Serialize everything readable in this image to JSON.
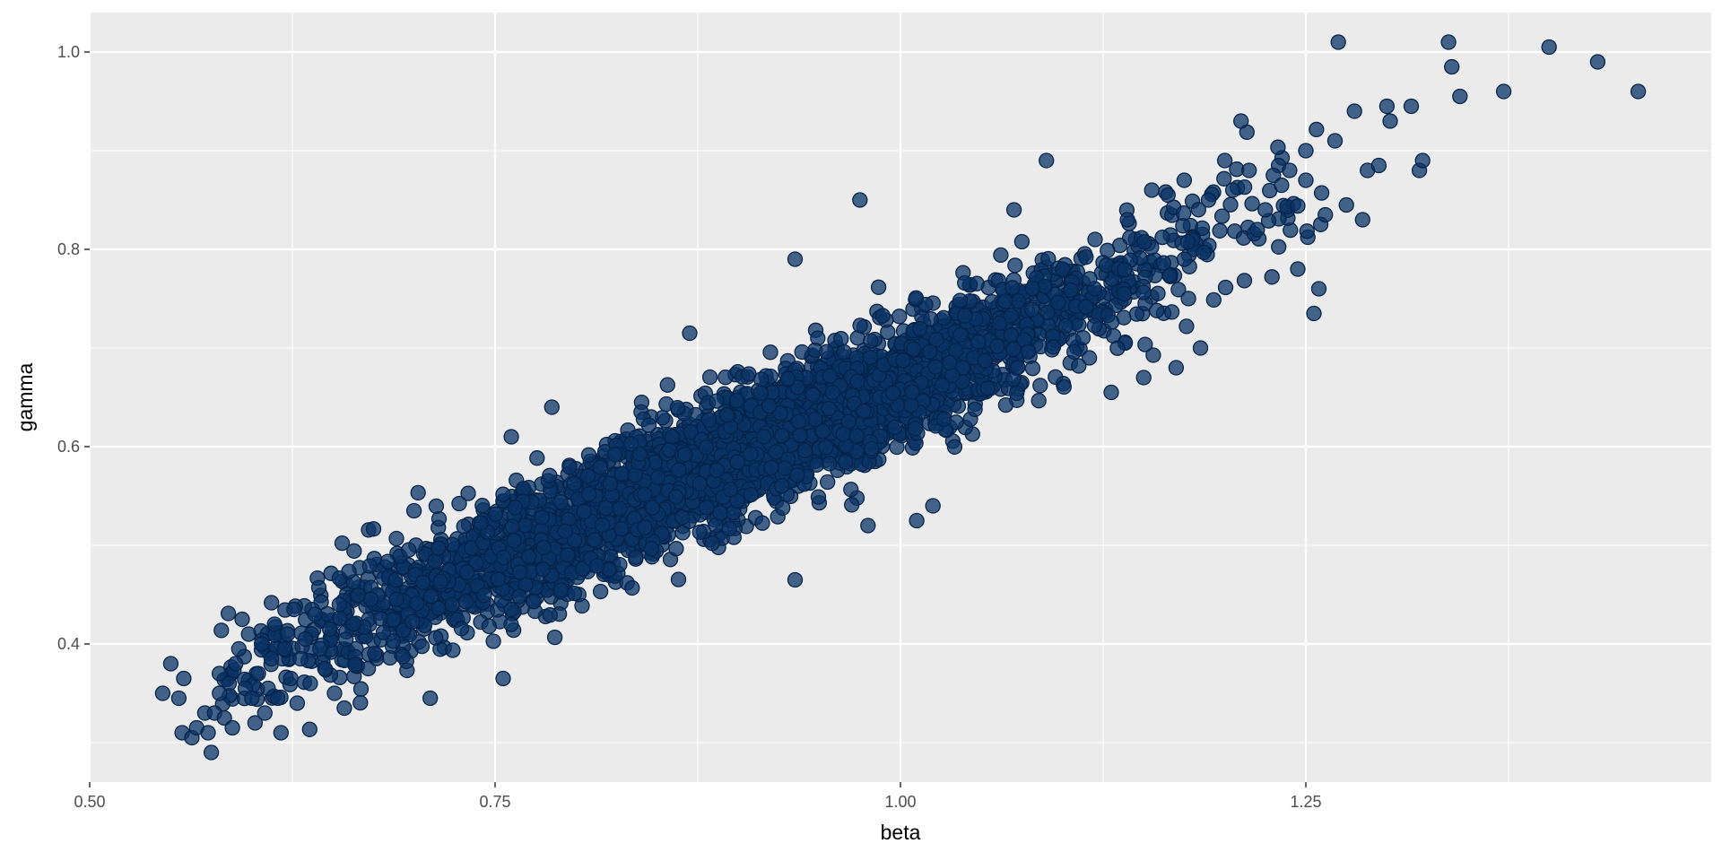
{
  "chart_data": {
    "type": "scatter",
    "title": "",
    "xlabel": "beta",
    "ylabel": "gamma",
    "xlim": [
      0.5,
      1.5
    ],
    "ylim": [
      0.26,
      1.04
    ],
    "x_ticks": [
      0.5,
      0.75,
      1.0,
      1.25
    ],
    "x_tick_labels": [
      "0.50",
      "0.75",
      "1.00",
      "1.25"
    ],
    "y_ticks": [
      0.4,
      0.6,
      0.8,
      1.0
    ],
    "y_tick_labels": [
      "0.4",
      "0.6",
      "0.8",
      "1.0"
    ],
    "grid": true,
    "legend": "none",
    "colors": {
      "panel": "#ebebeb",
      "grid": "#ffffff",
      "point_fill": "#0b3466",
      "point_stroke": "#03234a"
    },
    "series": [
      {
        "points": [
          [
            0.545,
            0.35
          ],
          [
            0.55,
            0.38
          ],
          [
            0.555,
            0.345
          ],
          [
            0.557,
            0.31
          ],
          [
            0.558,
            0.365
          ],
          [
            0.563,
            0.305
          ],
          [
            0.566,
            0.315
          ],
          [
            0.571,
            0.33
          ],
          [
            0.573,
            0.31
          ],
          [
            0.575,
            0.29
          ],
          [
            0.577,
            0.33
          ],
          [
            0.58,
            0.37
          ],
          [
            0.583,
            0.325
          ],
          [
            0.586,
            0.36
          ],
          [
            0.588,
            0.315
          ],
          [
            0.59,
            0.38
          ],
          [
            0.592,
            0.395
          ],
          [
            0.594,
            0.425
          ],
          [
            0.596,
            0.355
          ],
          [
            0.598,
            0.41
          ],
          [
            0.6,
            0.345
          ],
          [
            0.602,
            0.32
          ],
          [
            0.604,
            0.37
          ],
          [
            0.606,
            0.4
          ],
          [
            0.608,
            0.33
          ],
          [
            0.61,
            0.355
          ],
          [
            0.612,
            0.385
          ],
          [
            0.614,
            0.42
          ],
          [
            0.616,
            0.345
          ],
          [
            0.618,
            0.31
          ],
          [
            0.62,
            0.395
          ],
          [
            0.622,
            0.41
          ],
          [
            0.624,
            0.365
          ],
          [
            0.626,
            0.435
          ],
          [
            0.628,
            0.34
          ],
          [
            0.63,
            0.385
          ],
          [
            0.633,
            0.405
          ],
          [
            0.636,
            0.36
          ],
          [
            0.639,
            0.43
          ],
          [
            0.642,
            0.395
          ],
          [
            0.645,
            0.375
          ],
          [
            0.648,
            0.415
          ],
          [
            0.651,
            0.35
          ],
          [
            0.654,
            0.44
          ],
          [
            0.657,
            0.335
          ],
          [
            0.7,
            0.535
          ],
          [
            0.71,
            0.345
          ],
          [
            0.755,
            0.365
          ],
          [
            0.76,
            0.61
          ],
          [
            0.785,
            0.64
          ],
          [
            0.87,
            0.715
          ],
          [
            0.935,
            0.79
          ],
          [
            0.935,
            0.465
          ],
          [
            0.975,
            0.85
          ],
          [
            0.98,
            0.52
          ],
          [
            1.01,
            0.525
          ],
          [
            1.02,
            0.54
          ],
          [
            1.09,
            0.89
          ],
          [
            1.07,
            0.84
          ],
          [
            1.13,
            0.655
          ],
          [
            1.15,
            0.67
          ],
          [
            1.17,
            0.68
          ],
          [
            1.185,
            0.7
          ],
          [
            1.1,
            0.78
          ],
          [
            1.12,
            0.81
          ],
          [
            1.14,
            0.83
          ],
          [
            1.155,
            0.86
          ],
          [
            1.165,
            0.855
          ],
          [
            1.175,
            0.87
          ],
          [
            1.19,
            0.85
          ],
          [
            1.2,
            0.89
          ],
          [
            1.205,
            0.86
          ],
          [
            1.21,
            0.93
          ],
          [
            1.215,
            0.88
          ],
          [
            1.22,
            0.82
          ],
          [
            1.225,
            0.84
          ],
          [
            1.23,
            0.875
          ],
          [
            1.235,
            0.865
          ],
          [
            1.24,
            0.88
          ],
          [
            1.245,
            0.78
          ],
          [
            1.25,
            0.9
          ],
          [
            1.25,
            0.87
          ],
          [
            1.255,
            0.735
          ],
          [
            1.258,
            0.76
          ],
          [
            1.262,
            0.835
          ],
          [
            1.268,
            0.91
          ],
          [
            1.27,
            1.01
          ],
          [
            1.275,
            0.845
          ],
          [
            1.28,
            0.94
          ],
          [
            1.285,
            0.83
          ],
          [
            1.288,
            0.88
          ],
          [
            1.295,
            0.885
          ],
          [
            1.3,
            0.945
          ],
          [
            1.302,
            0.93
          ],
          [
            1.315,
            0.945
          ],
          [
            1.32,
            0.88
          ],
          [
            1.322,
            0.89
          ],
          [
            1.338,
            1.01
          ],
          [
            1.34,
            0.985
          ],
          [
            1.345,
            0.955
          ],
          [
            1.372,
            0.96
          ],
          [
            1.4,
            1.005
          ],
          [
            1.43,
            0.99
          ],
          [
            1.455,
            0.96
          ]
        ],
        "cloud": {
          "n": 3800,
          "x_range": [
            0.58,
            1.26
          ],
          "trend_intercept": -0.05,
          "trend_slope": 0.715,
          "noise_sd": 0.032
        }
      }
    ]
  }
}
